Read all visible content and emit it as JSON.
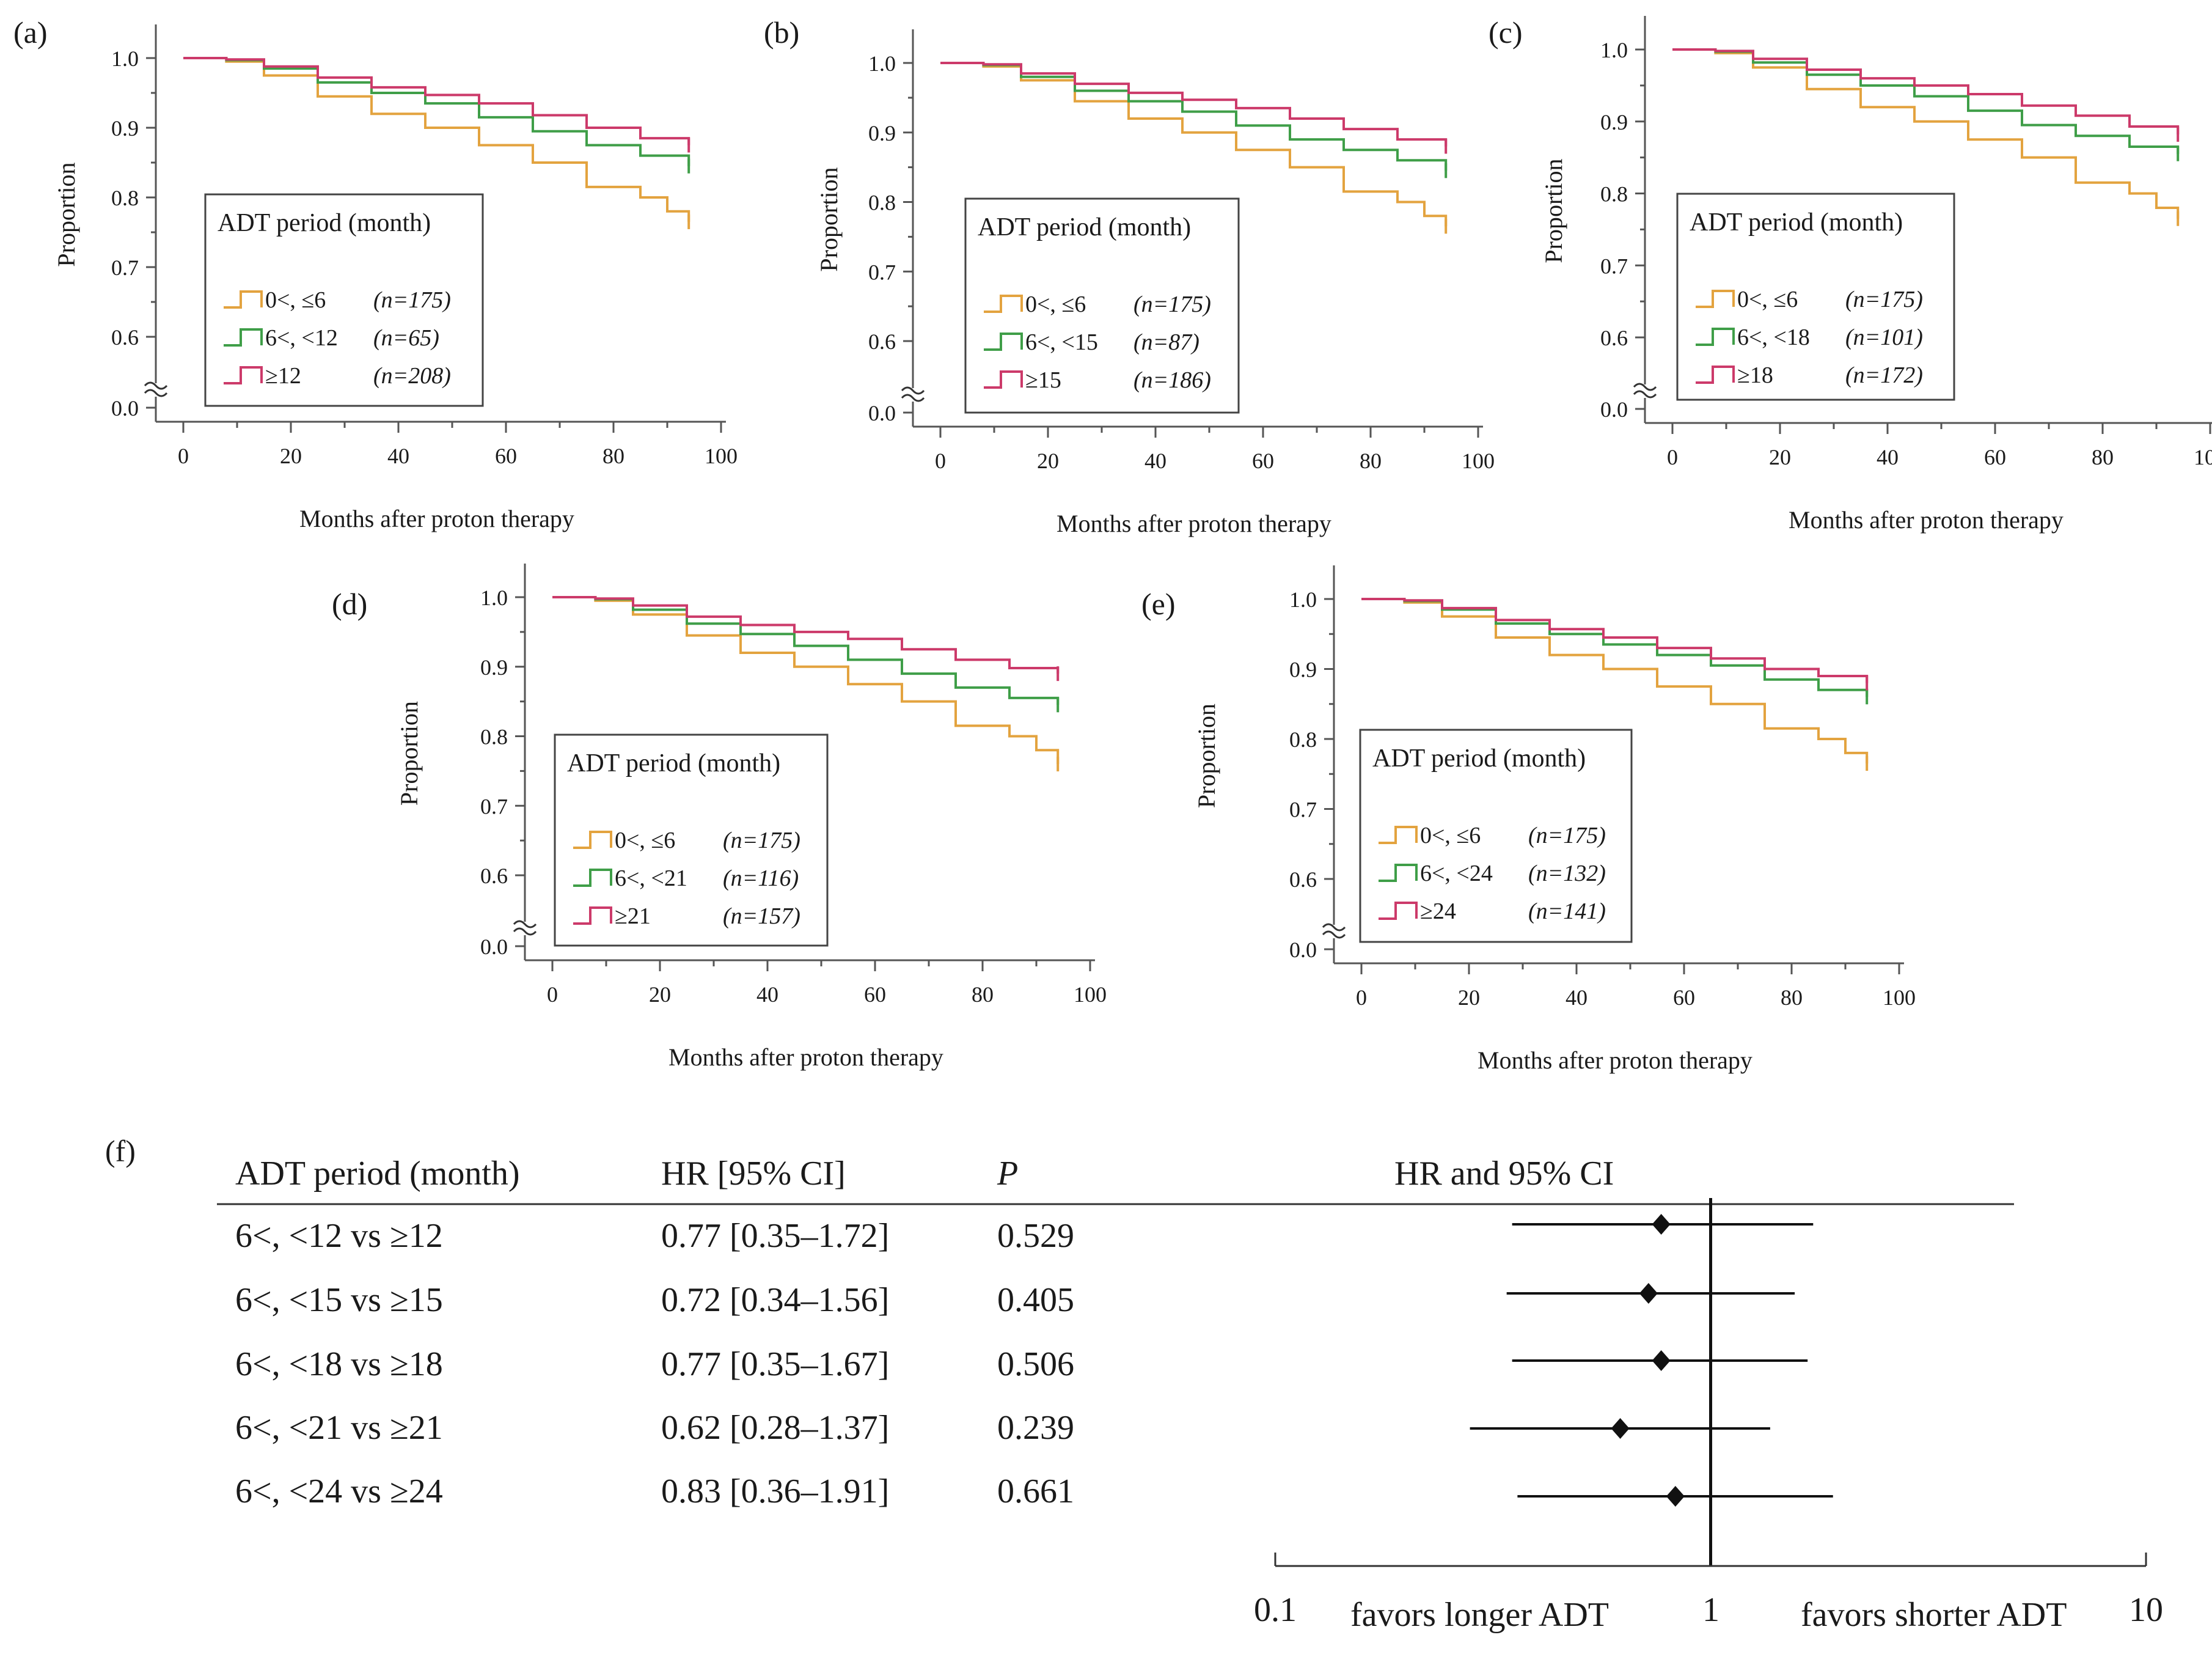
{
  "colors": {
    "short": "#e3a33f",
    "mid": "#3f9e48",
    "long": "#cc3a6a",
    "axis": "#555555",
    "text": "#1a1a1a"
  },
  "km_axis": {
    "xlabel": "Months after proton therapy",
    "ylabel": "Proportion",
    "xticks": [
      "0",
      "20",
      "40",
      "60",
      "80",
      "100"
    ],
    "yticks": [
      "0.0",
      "0.6",
      "0.7",
      "0.8",
      "0.9",
      "1.0"
    ],
    "legend_title": "ADT period (month)"
  },
  "chart_data": [
    {
      "type": "line",
      "panel": "(a)",
      "title": "",
      "xlabel": "Months after proton therapy",
      "ylabel": "Proportion",
      "xlim": [
        0,
        100
      ],
      "ylim": [
        0.5,
        1.0
      ],
      "y_axis_break": "0.0 to 0.6",
      "legend_title": "ADT period (month)",
      "legend_position": "lower-left",
      "series": [
        {
          "name": "0<, ≤6",
          "n": "(n=175)",
          "color_key": "short",
          "x": [
            0,
            8,
            15,
            25,
            35,
            45,
            55,
            65,
            75,
            85,
            90,
            94
          ],
          "y": [
            1.0,
            0.995,
            0.975,
            0.945,
            0.92,
            0.9,
            0.875,
            0.85,
            0.815,
            0.8,
            0.78,
            0.765
          ]
        },
        {
          "name": "6<, <12",
          "n": "(n=65)",
          "color_key": "mid",
          "x": [
            0,
            8,
            15,
            25,
            35,
            45,
            55,
            65,
            75,
            85,
            94
          ],
          "y": [
            1.0,
            0.997,
            0.985,
            0.965,
            0.95,
            0.935,
            0.915,
            0.895,
            0.875,
            0.86,
            0.845
          ]
        },
        {
          "name": "≥12",
          "n": "(n=208)",
          "color_key": "long",
          "x": [
            0,
            8,
            15,
            25,
            35,
            45,
            55,
            65,
            75,
            85,
            94
          ],
          "y": [
            1.0,
            0.998,
            0.988,
            0.972,
            0.958,
            0.947,
            0.935,
            0.918,
            0.9,
            0.885,
            0.875
          ]
        }
      ]
    },
    {
      "type": "line",
      "panel": "(b)",
      "title": "",
      "xlabel": "Months after proton therapy",
      "ylabel": "Proportion",
      "xlim": [
        0,
        100
      ],
      "ylim": [
        0.5,
        1.0
      ],
      "y_axis_break": "0.0 to 0.6",
      "legend_title": "ADT period (month)",
      "legend_position": "lower-left",
      "series": [
        {
          "name": "0<, ≤6",
          "n": "(n=175)",
          "color_key": "short",
          "x": [
            0,
            8,
            15,
            25,
            35,
            45,
            55,
            65,
            75,
            85,
            90,
            94
          ],
          "y": [
            1.0,
            0.995,
            0.975,
            0.945,
            0.92,
            0.9,
            0.875,
            0.85,
            0.815,
            0.8,
            0.78,
            0.765
          ]
        },
        {
          "name": "6<, <15",
          "n": "(n=87)",
          "color_key": "mid",
          "x": [
            0,
            8,
            15,
            25,
            35,
            45,
            55,
            65,
            75,
            85,
            94
          ],
          "y": [
            1.0,
            0.997,
            0.98,
            0.96,
            0.945,
            0.93,
            0.91,
            0.89,
            0.875,
            0.86,
            0.845
          ]
        },
        {
          "name": "≥15",
          "n": "(n=186)",
          "color_key": "long",
          "x": [
            0,
            8,
            15,
            25,
            35,
            45,
            55,
            65,
            75,
            85,
            94
          ],
          "y": [
            1.0,
            0.998,
            0.985,
            0.97,
            0.957,
            0.947,
            0.935,
            0.92,
            0.905,
            0.89,
            0.88
          ]
        }
      ]
    },
    {
      "type": "line",
      "panel": "(c)",
      "title": "",
      "xlabel": "Months after proton therapy",
      "ylabel": "Proportion",
      "xlim": [
        0,
        100
      ],
      "ylim": [
        0.5,
        1.0
      ],
      "y_axis_break": "0.0 to 0.6",
      "legend_title": "ADT period (month)",
      "legend_position": "lower-left",
      "series": [
        {
          "name": "0<, ≤6",
          "n": "(n=175)",
          "color_key": "short",
          "x": [
            0,
            8,
            15,
            25,
            35,
            45,
            55,
            65,
            75,
            85,
            90,
            94
          ],
          "y": [
            1.0,
            0.995,
            0.975,
            0.945,
            0.92,
            0.9,
            0.875,
            0.85,
            0.815,
            0.8,
            0.78,
            0.765
          ]
        },
        {
          "name": "6<, <18",
          "n": "(n=101)",
          "color_key": "mid",
          "x": [
            0,
            8,
            15,
            25,
            35,
            45,
            55,
            65,
            75,
            85,
            94
          ],
          "y": [
            1.0,
            0.997,
            0.982,
            0.965,
            0.95,
            0.935,
            0.915,
            0.895,
            0.88,
            0.865,
            0.855
          ]
        },
        {
          "name": "≥18",
          "n": "(n=172)",
          "color_key": "long",
          "x": [
            0,
            8,
            15,
            25,
            35,
            45,
            55,
            65,
            75,
            85,
            94
          ],
          "y": [
            1.0,
            0.998,
            0.987,
            0.972,
            0.96,
            0.95,
            0.938,
            0.922,
            0.908,
            0.893,
            0.882
          ]
        }
      ]
    },
    {
      "type": "line",
      "panel": "(d)",
      "title": "",
      "xlabel": "Months after proton therapy",
      "ylabel": "Proportion",
      "xlim": [
        0,
        100
      ],
      "ylim": [
        0.5,
        1.0
      ],
      "y_axis_break": "0.0 to 0.6",
      "legend_title": "ADT period (month)",
      "legend_position": "lower-left",
      "series": [
        {
          "name": "0<, ≤6",
          "n": "(n=175)",
          "color_key": "short",
          "x": [
            0,
            8,
            15,
            25,
            35,
            45,
            55,
            65,
            75,
            85,
            90,
            94
          ],
          "y": [
            1.0,
            0.995,
            0.975,
            0.945,
            0.92,
            0.9,
            0.875,
            0.85,
            0.815,
            0.8,
            0.78,
            0.76
          ]
        },
        {
          "name": "6<, <21",
          "n": "(n=116)",
          "color_key": "mid",
          "x": [
            0,
            8,
            15,
            25,
            35,
            45,
            55,
            65,
            75,
            85,
            94
          ],
          "y": [
            1.0,
            0.997,
            0.982,
            0.962,
            0.947,
            0.93,
            0.91,
            0.89,
            0.87,
            0.855,
            0.845
          ]
        },
        {
          "name": "≥21",
          "n": "(n=157)",
          "color_key": "long",
          "x": [
            0,
            8,
            15,
            25,
            35,
            45,
            55,
            65,
            75,
            85,
            94
          ],
          "y": [
            1.0,
            0.998,
            0.988,
            0.972,
            0.96,
            0.95,
            0.94,
            0.925,
            0.91,
            0.898,
            0.89
          ]
        }
      ]
    },
    {
      "type": "line",
      "panel": "(e)",
      "title": "",
      "xlabel": "Months after proton therapy",
      "ylabel": "Proportion",
      "xlim": [
        0,
        100
      ],
      "ylim": [
        0.5,
        1.0
      ],
      "y_axis_break": "0.0 to 0.6",
      "legend_title": "ADT period (month)",
      "legend_position": "lower-left",
      "series": [
        {
          "name": "0<, ≤6",
          "n": "(n=175)",
          "color_key": "short",
          "x": [
            0,
            8,
            15,
            25,
            35,
            45,
            55,
            65,
            75,
            85,
            90,
            94
          ],
          "y": [
            1.0,
            0.995,
            0.975,
            0.945,
            0.92,
            0.9,
            0.875,
            0.85,
            0.815,
            0.8,
            0.78,
            0.765
          ]
        },
        {
          "name": "6<, <24",
          "n": "(n=132)",
          "color_key": "mid",
          "x": [
            0,
            8,
            15,
            25,
            35,
            45,
            55,
            65,
            75,
            85,
            94
          ],
          "y": [
            1.0,
            0.997,
            0.985,
            0.965,
            0.95,
            0.935,
            0.92,
            0.905,
            0.885,
            0.87,
            0.86
          ]
        },
        {
          "name": "≥24",
          "n": "(n=141)",
          "color_key": "long",
          "x": [
            0,
            8,
            15,
            25,
            35,
            45,
            55,
            65,
            75,
            85,
            94
          ],
          "y": [
            1.0,
            0.998,
            0.987,
            0.97,
            0.957,
            0.945,
            0.93,
            0.915,
            0.9,
            0.89,
            0.88
          ]
        }
      ]
    },
    {
      "type": "table",
      "panel": "(f)",
      "title": "",
      "columns": [
        "ADT period (month)",
        "HR [95% CI]",
        "P",
        "HR and 95% CI"
      ],
      "rows": [
        {
          "label": "6<, <12 vs ≥12",
          "hr_text": "0.77 [0.35–1.72]",
          "p": "0.529",
          "hr": 0.77,
          "lo": 0.35,
          "hi": 1.72
        },
        {
          "label": "6<, <15 vs ≥15",
          "hr_text": "0.72 [0.34–1.56]",
          "p": "0.405",
          "hr": 0.72,
          "lo": 0.34,
          "hi": 1.56
        },
        {
          "label": "6<, <18 vs ≥18",
          "hr_text": "0.77 [0.35–1.67]",
          "p": "0.506",
          "hr": 0.77,
          "lo": 0.35,
          "hi": 1.67
        },
        {
          "label": "6<, <21 vs ≥21",
          "hr_text": "0.62 [0.28–1.37]",
          "p": "0.239",
          "hr": 0.62,
          "lo": 0.28,
          "hi": 1.37
        },
        {
          "label": "6<, <24 vs ≥24",
          "hr_text": "0.83 [0.36–1.91]",
          "p": "0.661",
          "hr": 0.83,
          "lo": 0.36,
          "hi": 1.91
        }
      ],
      "xscale": "log",
      "xlim": [
        0.1,
        10
      ],
      "xtick_labels": [
        "0.1",
        "1",
        "10"
      ],
      "reference": 1,
      "left_note": "favors longer ADT",
      "right_note": "favors shorter ADT"
    }
  ]
}
